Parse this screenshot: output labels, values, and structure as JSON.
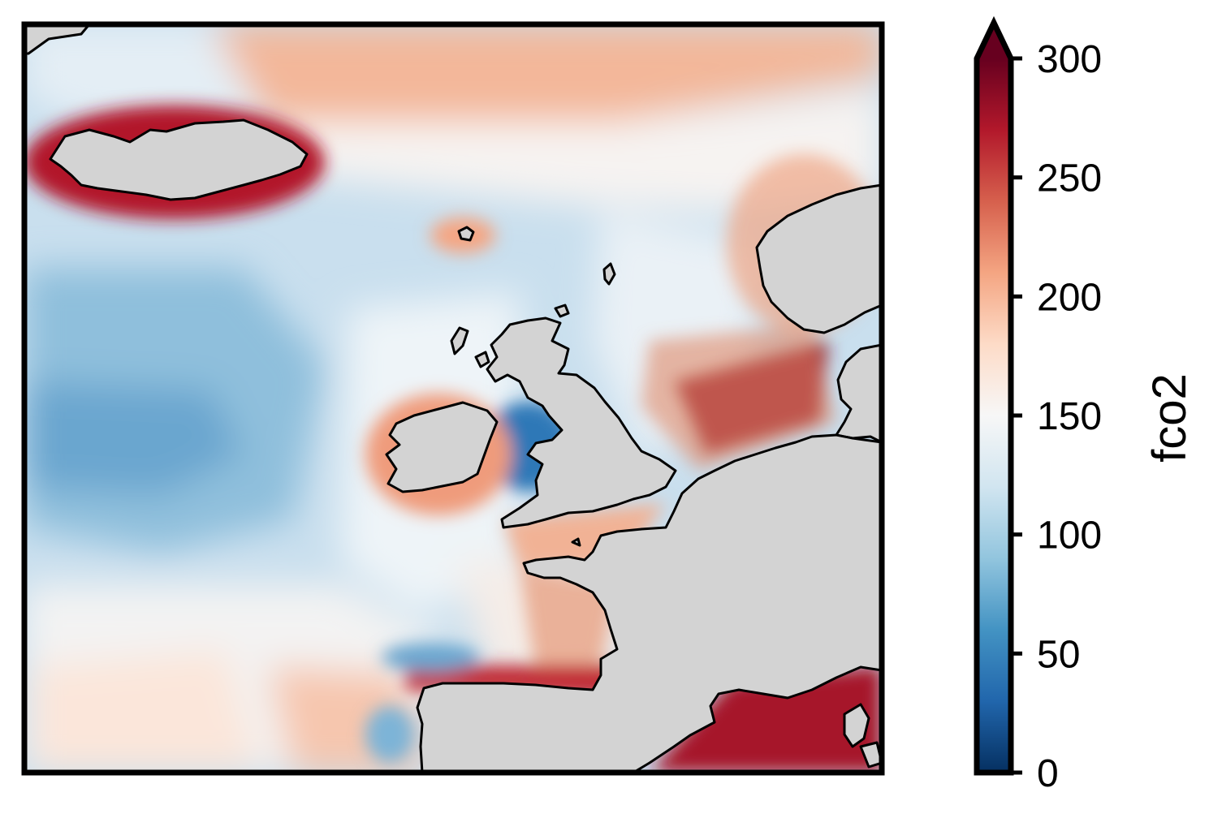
{
  "colorbar": {
    "label": "fco2",
    "min": 0,
    "max": 300,
    "extend": "max",
    "colormap": "RdBu_r",
    "ticks": [
      {
        "value": 0,
        "label": "0"
      },
      {
        "value": 50,
        "label": "50"
      },
      {
        "value": 100,
        "label": "100"
      },
      {
        "value": 150,
        "label": "150"
      },
      {
        "value": 200,
        "label": "200"
      },
      {
        "value": 250,
        "label": "250"
      },
      {
        "value": 300,
        "label": "300"
      }
    ],
    "stops": [
      "#053061",
      "#2166ac",
      "#4393c3",
      "#92c5de",
      "#d1e5f0",
      "#f7f7f7",
      "#fddbc7",
      "#f4a582",
      "#d6604d",
      "#b2182b",
      "#67001f"
    ]
  },
  "map": {
    "region": "North-east Atlantic / north-west Europe",
    "land_color": "#d3d3d3",
    "coastline_color": "#000000"
  }
}
